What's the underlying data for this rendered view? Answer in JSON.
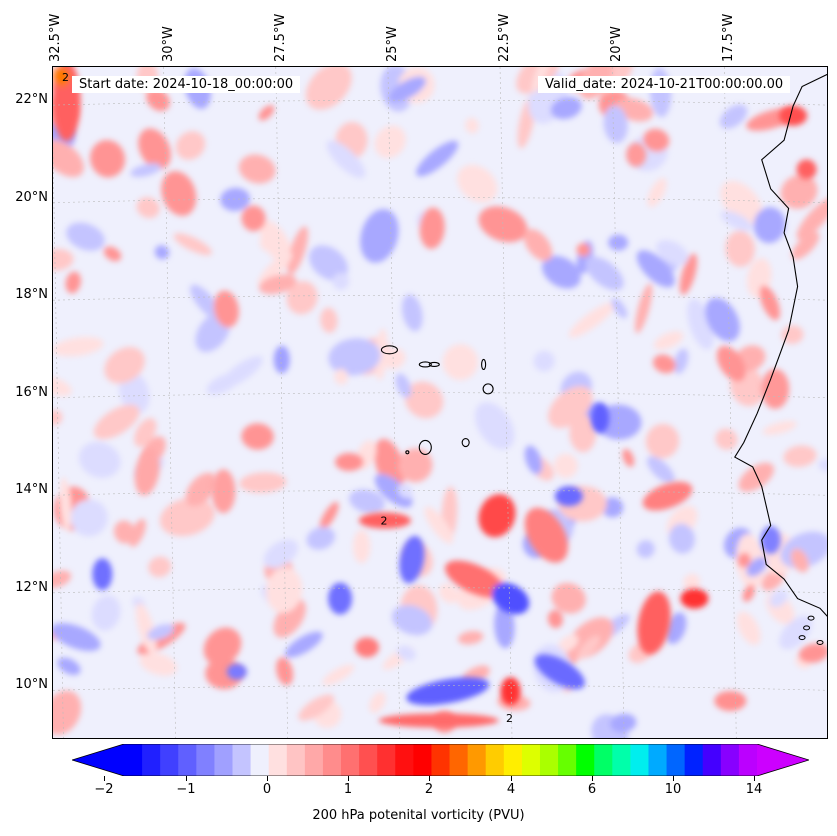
{
  "map": {
    "title_start": "Start date: 2024-10-18_00:00:00",
    "title_valid": "Valid_date: 2024-10-21T00:00:00.00",
    "lon_labels": [
      "32.5°W",
      "30°W",
      "27.5°W",
      "25°W",
      "22.5°W",
      "20°W",
      "17.5°W"
    ],
    "lon_values": [
      -32.5,
      -30,
      -27.5,
      -25,
      -22.5,
      -20,
      -17.5
    ],
    "lat_labels": [
      "22°N",
      "20°N",
      "18°N",
      "16°N",
      "14°N",
      "12°N",
      "10°N"
    ],
    "lat_values": [
      22,
      20,
      18,
      16,
      14,
      12,
      10
    ],
    "extent": {
      "lon_min": -32.6,
      "lon_max": -15.3,
      "lat_min": 8.9,
      "lat_max": 22.7
    },
    "contour_label": "2"
  },
  "colorbar": {
    "label": "200 hPa potenital vorticity (PVU)",
    "ticks": [
      "−2",
      "−1",
      "0",
      "1",
      "2",
      "4",
      "6",
      "10",
      "14"
    ],
    "colors": [
      "#0000ff",
      "#2020ff",
      "#4040ff",
      "#6060ff",
      "#8080ff",
      "#a0a0ff",
      "#c4c4ff",
      "#eff0fd",
      "#ffe0e0",
      "#ffc4c4",
      "#ffa8a8",
      "#ff8c8c",
      "#ff7070",
      "#ff5050",
      "#ff3030",
      "#ff1010",
      "#ff0000",
      "#ff3300",
      "#ff6600",
      "#ff9900",
      "#ffcc00",
      "#ffee00",
      "#ddff00",
      "#aaff00",
      "#66ff00",
      "#00ff00",
      "#00ff66",
      "#00ffaa",
      "#00eeee",
      "#00aaff",
      "#0066ff",
      "#0022ff",
      "#4400ff",
      "#8800ff",
      "#bb00ff"
    ],
    "under_color": "#0000ff",
    "over_color": "#cc00ff"
  },
  "features": {
    "pv_positive_color": "#ff0000",
    "pv_negative_color": "#0000ff",
    "coast_color": "#000000",
    "grid_color": "#bbbbbb"
  }
}
